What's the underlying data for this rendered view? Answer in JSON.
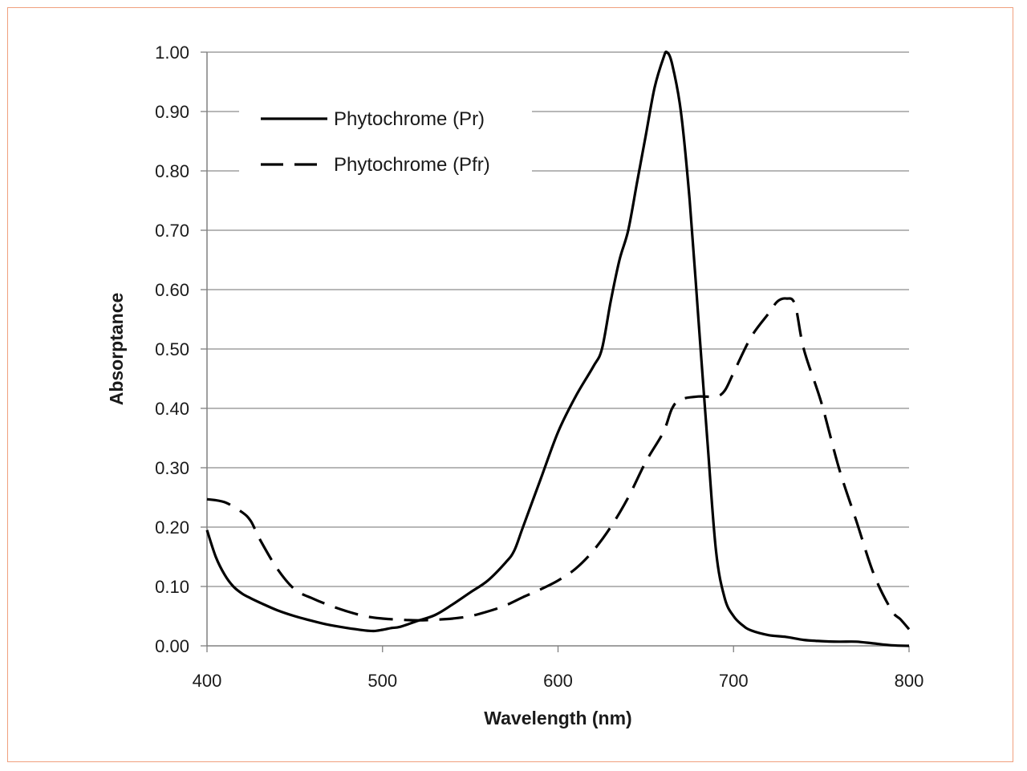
{
  "chart_data": {
    "type": "line",
    "xlabel": "Wavelength (nm)",
    "ylabel": "Absorptance",
    "xlim": [
      400,
      800
    ],
    "ylim": [
      0,
      1
    ],
    "x_ticks": [
      "400",
      "500",
      "600",
      "700",
      "800"
    ],
    "y_ticks": [
      "0.00",
      "0.10",
      "0.20",
      "0.30",
      "0.40",
      "0.50",
      "0.60",
      "0.70",
      "0.80",
      "0.90",
      "1.00"
    ],
    "grid": "horizontal",
    "legend_position": "top-left",
    "series": [
      {
        "name": "Phytochrome (Pr)",
        "style": "solid",
        "color": "#000000",
        "points": [
          [
            400,
            0.195
          ],
          [
            405,
            0.15
          ],
          [
            410,
            0.12
          ],
          [
            415,
            0.1
          ],
          [
            420,
            0.088
          ],
          [
            425,
            0.08
          ],
          [
            430,
            0.073
          ],
          [
            440,
            0.06
          ],
          [
            450,
            0.05
          ],
          [
            460,
            0.042
          ],
          [
            470,
            0.035
          ],
          [
            480,
            0.03
          ],
          [
            490,
            0.026
          ],
          [
            495,
            0.025
          ],
          [
            500,
            0.027
          ],
          [
            505,
            0.03
          ],
          [
            510,
            0.032
          ],
          [
            520,
            0.042
          ],
          [
            530,
            0.052
          ],
          [
            540,
            0.07
          ],
          [
            550,
            0.09
          ],
          [
            560,
            0.11
          ],
          [
            570,
            0.14
          ],
          [
            575,
            0.16
          ],
          [
            580,
            0.2
          ],
          [
            590,
            0.28
          ],
          [
            600,
            0.36
          ],
          [
            610,
            0.42
          ],
          [
            620,
            0.47
          ],
          [
            625,
            0.5
          ],
          [
            630,
            0.58
          ],
          [
            635,
            0.65
          ],
          [
            640,
            0.7
          ],
          [
            645,
            0.78
          ],
          [
            650,
            0.86
          ],
          [
            655,
            0.94
          ],
          [
            660,
            0.99
          ],
          [
            662,
            1.0
          ],
          [
            665,
            0.98
          ],
          [
            670,
            0.9
          ],
          [
            675,
            0.75
          ],
          [
            680,
            0.55
          ],
          [
            685,
            0.35
          ],
          [
            690,
            0.16
          ],
          [
            695,
            0.08
          ],
          [
            700,
            0.05
          ],
          [
            705,
            0.035
          ],
          [
            710,
            0.026
          ],
          [
            720,
            0.018
          ],
          [
            730,
            0.015
          ],
          [
            740,
            0.01
          ],
          [
            750,
            0.008
          ],
          [
            760,
            0.007
          ],
          [
            770,
            0.007
          ],
          [
            780,
            0.004
          ],
          [
            790,
            0.001
          ],
          [
            800,
            0.0
          ]
        ]
      },
      {
        "name": "Phytochrome (Pfr)",
        "style": "dashed",
        "color": "#000000",
        "points": [
          [
            400,
            0.247
          ],
          [
            410,
            0.242
          ],
          [
            420,
            0.225
          ],
          [
            425,
            0.21
          ],
          [
            430,
            0.18
          ],
          [
            440,
            0.13
          ],
          [
            450,
            0.095
          ],
          [
            460,
            0.08
          ],
          [
            470,
            0.068
          ],
          [
            480,
            0.058
          ],
          [
            490,
            0.05
          ],
          [
            500,
            0.046
          ],
          [
            510,
            0.044
          ],
          [
            520,
            0.043
          ],
          [
            530,
            0.044
          ],
          [
            540,
            0.046
          ],
          [
            550,
            0.05
          ],
          [
            560,
            0.058
          ],
          [
            570,
            0.068
          ],
          [
            580,
            0.082
          ],
          [
            590,
            0.095
          ],
          [
            600,
            0.11
          ],
          [
            610,
            0.13
          ],
          [
            620,
            0.16
          ],
          [
            630,
            0.2
          ],
          [
            640,
            0.25
          ],
          [
            650,
            0.31
          ],
          [
            660,
            0.36
          ],
          [
            665,
            0.4
          ],
          [
            670,
            0.415
          ],
          [
            680,
            0.42
          ],
          [
            690,
            0.42
          ],
          [
            695,
            0.43
          ],
          [
            700,
            0.46
          ],
          [
            710,
            0.52
          ],
          [
            720,
            0.56
          ],
          [
            725,
            0.58
          ],
          [
            730,
            0.585
          ],
          [
            735,
            0.575
          ],
          [
            740,
            0.5
          ],
          [
            750,
            0.41
          ],
          [
            760,
            0.3
          ],
          [
            770,
            0.21
          ],
          [
            780,
            0.12
          ],
          [
            790,
            0.06
          ],
          [
            795,
            0.045
          ],
          [
            800,
            0.028
          ]
        ]
      }
    ]
  }
}
